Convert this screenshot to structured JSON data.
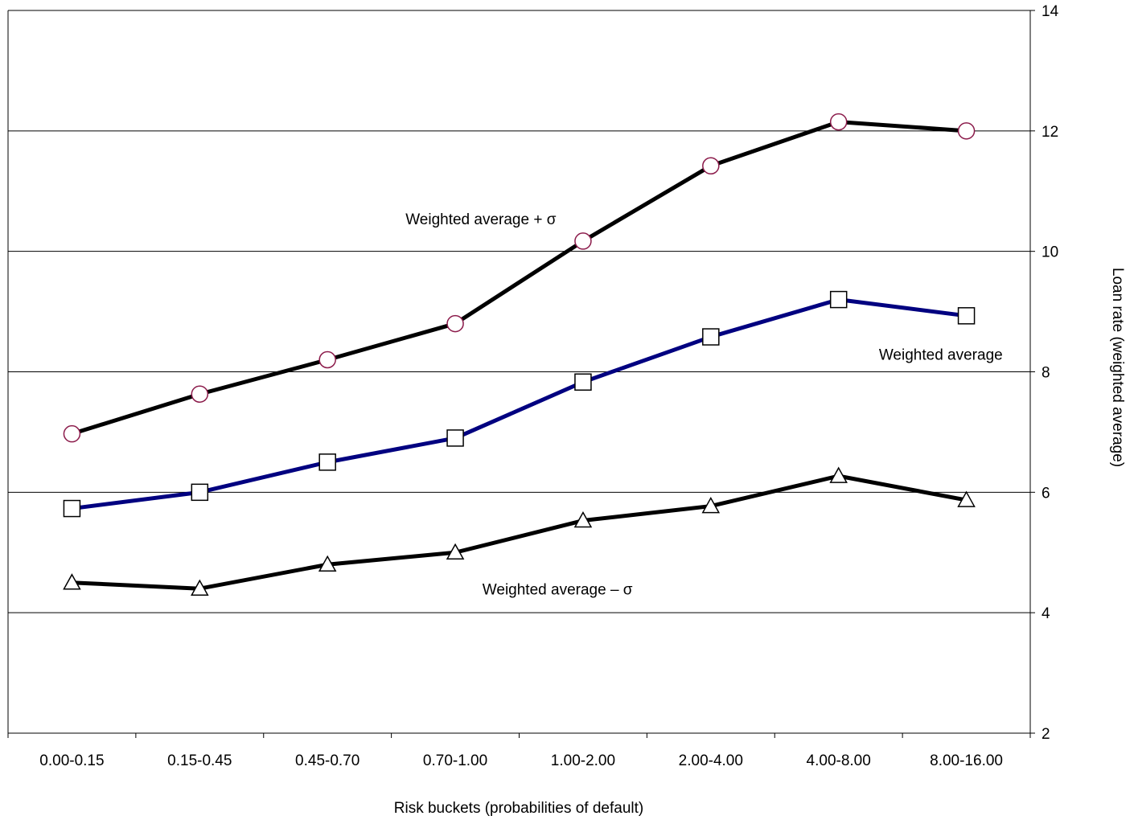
{
  "chart_data": {
    "type": "line",
    "categories": [
      "0.00-0.15",
      "0.15-0.45",
      "0.45-0.70",
      "0.70-1.00",
      "1.00-2.00",
      "2.00-4.00",
      "4.00-8.00",
      "8.00-16.00"
    ],
    "xlabel": "Risk buckets (probabilities of default)",
    "ylabel": "Loan rate (weighted average)",
    "ylim": [
      2,
      14
    ],
    "yticks": [
      2,
      4,
      6,
      8,
      10,
      12,
      14
    ],
    "y_axis_side": "right",
    "grid": true,
    "legend": "none",
    "series": [
      {
        "label": "Weighted average + σ",
        "marker": "circle",
        "line_color": "#000000",
        "marker_edge_color": "#8b1a4a",
        "values": [
          6.97,
          7.63,
          8.2,
          8.8,
          10.17,
          11.42,
          12.15,
          12.0
        ]
      },
      {
        "label": "Weighted average",
        "marker": "square",
        "line_color": "#000080",
        "marker_edge_color": "#000000",
        "values": [
          5.73,
          6.0,
          6.5,
          6.9,
          7.83,
          8.58,
          9.2,
          8.93
        ]
      },
      {
        "label": "Weighted average – σ",
        "marker": "triangle",
        "line_color": "#000000",
        "marker_edge_color": "#000000",
        "values": [
          4.5,
          4.4,
          4.8,
          5.0,
          5.53,
          5.77,
          6.27,
          5.87
        ]
      }
    ]
  }
}
